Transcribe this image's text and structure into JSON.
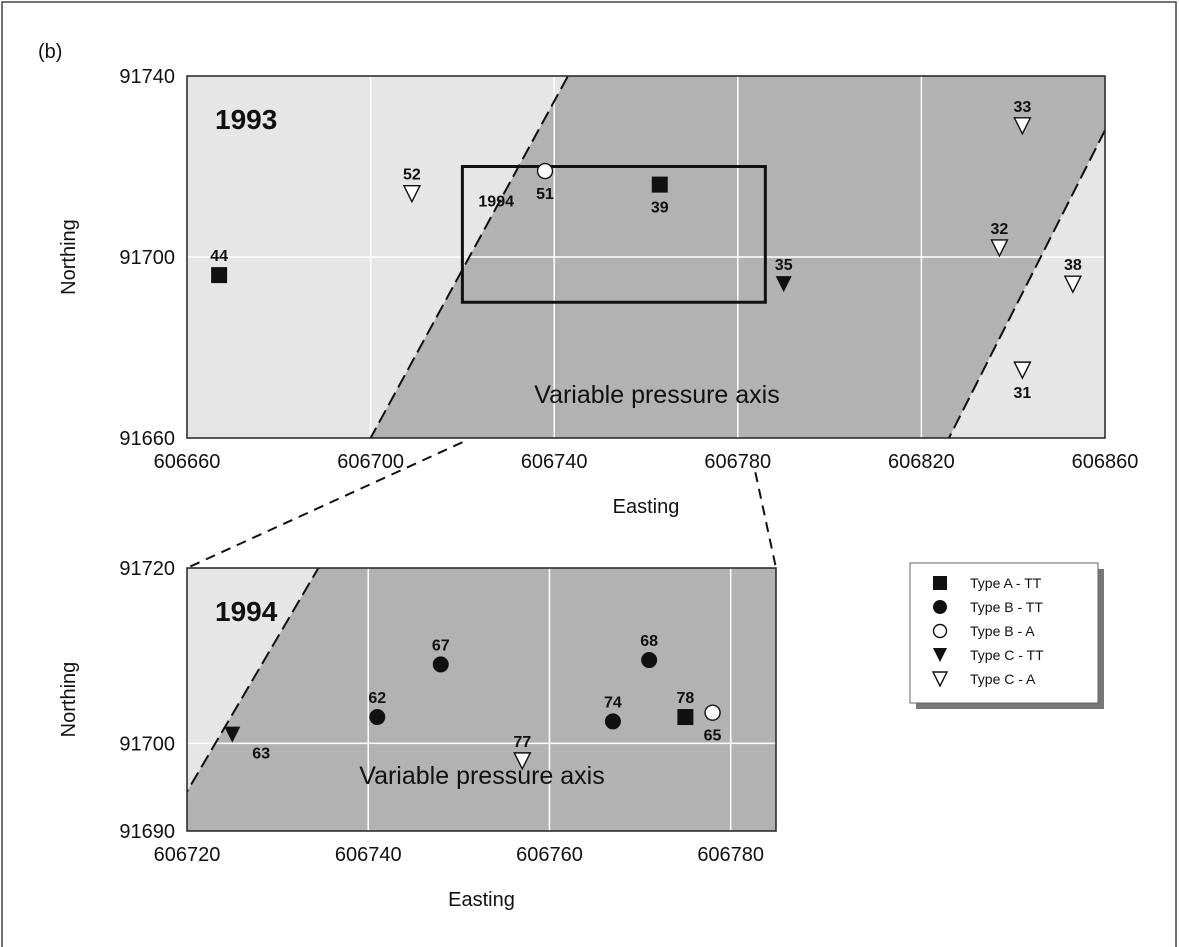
{
  "figure": {
    "panel_tag": "(b)"
  },
  "colors": {
    "light_region": "#e6e6e6",
    "dark_region": "#b2b2b2",
    "grid": "#ffffff",
    "ink": "#111111"
  },
  "legend": {
    "entries": [
      {
        "marker": "square-filled",
        "label": "Type A - TT"
      },
      {
        "marker": "circle-filled",
        "label": "Type B - TT"
      },
      {
        "marker": "circle-open",
        "label": "Type B - A"
      },
      {
        "marker": "triangle-down-filled",
        "label": "Type C - TT"
      },
      {
        "marker": "triangle-down-open",
        "label": "Type C - A"
      }
    ]
  },
  "chart_data": [
    {
      "type": "scatter",
      "year_label": "1993",
      "xlabel": "Easting",
      "ylabel": "Northing",
      "xlim": [
        606660,
        606860
      ],
      "ylim": [
        91660,
        91740
      ],
      "xticks": [
        606660,
        606700,
        606740,
        606780,
        606820,
        606860
      ],
      "yticks": [
        91660,
        91700,
        91740
      ],
      "region_label": "Variable pressure axis",
      "boundary_label": "1994",
      "axis_boundaries": [
        {
          "from": [
            606700,
            91660
          ],
          "to": [
            606743,
            91740
          ]
        },
        {
          "from": [
            606826,
            91660
          ],
          "to": [
            606860,
            91728
          ]
        }
      ],
      "inset_box": {
        "x": [
          606720,
          606786
        ],
        "y": [
          91690,
          91720
        ]
      },
      "points": [
        {
          "id": "44",
          "x": 606667,
          "y": 91696,
          "marker": "square-filled",
          "label_pos": "above"
        },
        {
          "id": "52",
          "x": 606709,
          "y": 91714,
          "marker": "triangle-down-open",
          "label_pos": "above"
        },
        {
          "id": "51",
          "x": 606738,
          "y": 91719,
          "marker": "circle-open",
          "label_pos": "below"
        },
        {
          "id": "39",
          "x": 606763,
          "y": 91716,
          "marker": "square-filled",
          "label_pos": "below"
        },
        {
          "id": "35",
          "x": 606790,
          "y": 91694,
          "marker": "triangle-down-filled",
          "label_pos": "above"
        },
        {
          "id": "33",
          "x": 606842,
          "y": 91729,
          "marker": "triangle-down-open",
          "label_pos": "above"
        },
        {
          "id": "32",
          "x": 606837,
          "y": 91702,
          "marker": "triangle-down-open",
          "label_pos": "above"
        },
        {
          "id": "38",
          "x": 606853,
          "y": 91694,
          "marker": "triangle-down-open",
          "label_pos": "above"
        },
        {
          "id": "31",
          "x": 606842,
          "y": 91675,
          "marker": "triangle-down-open",
          "label_pos": "below"
        }
      ]
    },
    {
      "type": "scatter",
      "year_label": "1994",
      "xlabel": "Easting",
      "ylabel": "Northing",
      "xlim": [
        606720,
        606785
      ],
      "ylim": [
        91690,
        91720
      ],
      "xticks": [
        606720,
        606740,
        606760,
        606780
      ],
      "yticks": [
        91690,
        91700,
        91720
      ],
      "region_label": "Variable pressure axis",
      "axis_boundaries": [
        {
          "from": [
            606720,
            91694.5
          ],
          "to": [
            606734.5,
            91720
          ]
        }
      ],
      "points": [
        {
          "id": "63",
          "x": 606725,
          "y": 91701,
          "marker": "triangle-down-filled",
          "label_pos": "below-right"
        },
        {
          "id": "62",
          "x": 606741,
          "y": 91703,
          "marker": "circle-filled",
          "label_pos": "above"
        },
        {
          "id": "67",
          "x": 606748,
          "y": 91709,
          "marker": "circle-filled",
          "label_pos": "above"
        },
        {
          "id": "77",
          "x": 606757,
          "y": 91698,
          "marker": "triangle-down-open",
          "label_pos": "above"
        },
        {
          "id": "74",
          "x": 606767,
          "y": 91702.5,
          "marker": "circle-filled",
          "label_pos": "above"
        },
        {
          "id": "68",
          "x": 606771,
          "y": 91709.5,
          "marker": "circle-filled",
          "label_pos": "above"
        },
        {
          "id": "78",
          "x": 606775,
          "y": 91703,
          "marker": "square-filled",
          "label_pos": "above"
        },
        {
          "id": "65",
          "x": 606778,
          "y": 91703.5,
          "marker": "circle-open",
          "label_pos": "below"
        }
      ]
    }
  ]
}
